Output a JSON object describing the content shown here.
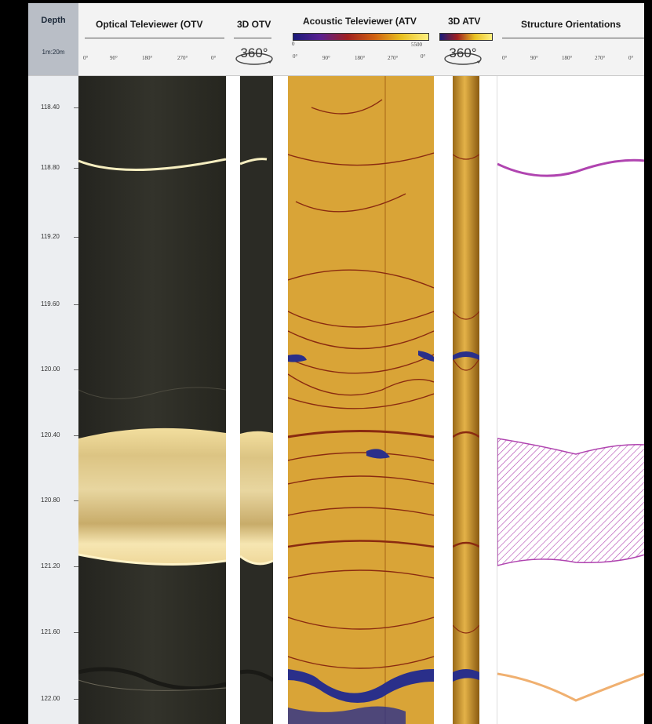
{
  "header": {
    "depth": {
      "title": "Depth",
      "scale": "1m:20m"
    },
    "otv": {
      "title": "Optical Televiewer (OTV",
      "ticks": [
        "0°",
        "90°",
        "180°",
        "270°",
        "0°"
      ]
    },
    "otv3d": {
      "title": "3D OTV",
      "badge": "360°"
    },
    "atv": {
      "title": "Acoustic Televiewer (ATV",
      "scale_min": "0",
      "scale_max": "5500",
      "ticks": [
        "0°",
        "90°",
        "180°",
        "270°",
        "0°"
      ]
    },
    "atv3d": {
      "title": "3D ATV",
      "badge": "360°"
    },
    "structure": {
      "title": "Structure Orientations",
      "ticks": [
        "0°",
        "90°",
        "180°",
        "270°",
        "0°"
      ]
    }
  },
  "depth_labels": [
    "118.40",
    "118.80",
    "119.20",
    "119.60",
    "120.00",
    "120.40",
    "120.80",
    "121.20",
    "121.60",
    "122.00"
  ],
  "colors": {
    "otv_dark": "#2a2a24",
    "otv_band": "#e8d49a",
    "atv_base": "#d9a437",
    "atv_dark": "#8a2a10",
    "atv_blue": "#2a2f8a",
    "structure_purple": "#b044b0",
    "structure_orange": "#f0b070"
  }
}
